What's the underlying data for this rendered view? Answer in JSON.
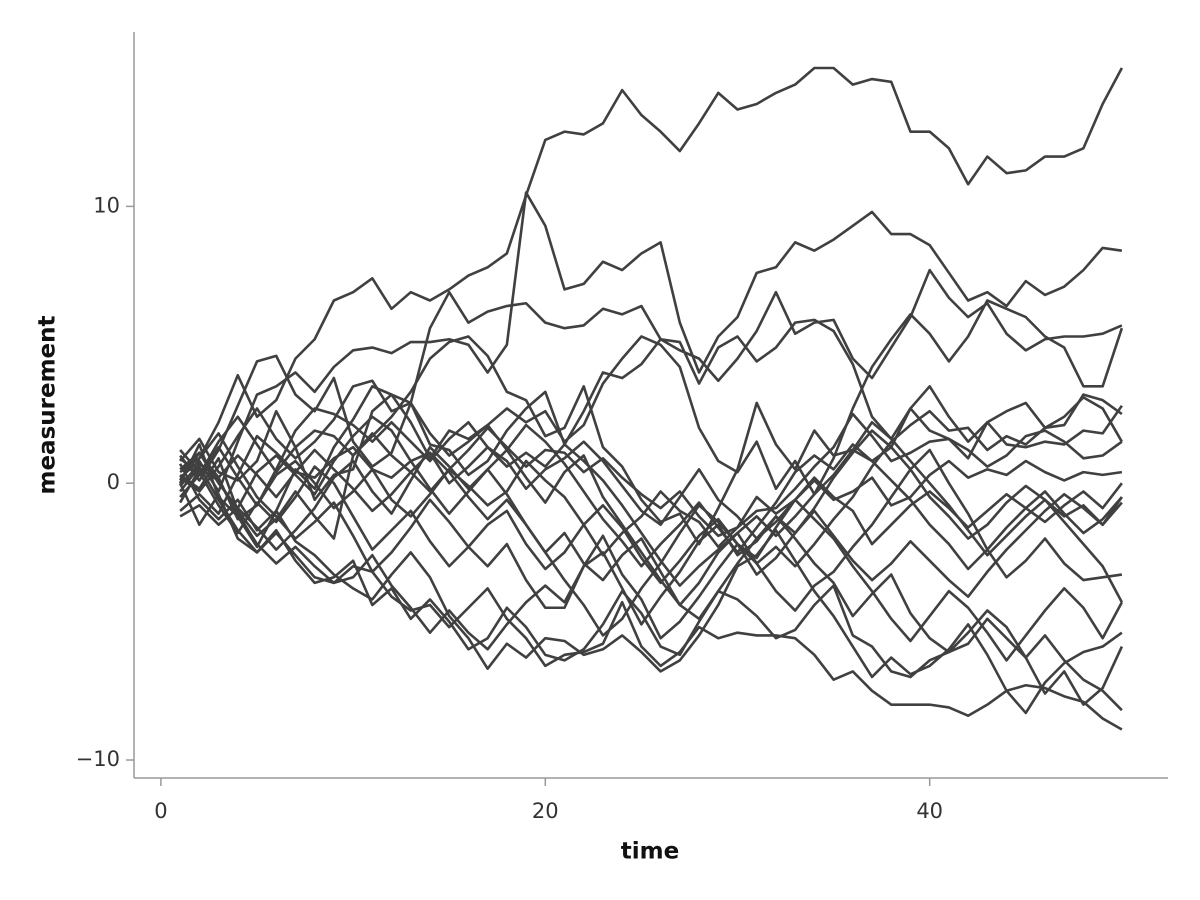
{
  "chart_data": {
    "type": "line",
    "xlabel": "time",
    "ylabel": "measurement",
    "x": [
      1,
      2,
      3,
      4,
      5,
      6,
      7,
      8,
      9,
      10,
      11,
      12,
      13,
      14,
      15,
      16,
      17,
      18,
      19,
      20,
      21,
      22,
      23,
      24,
      25,
      26,
      27,
      28,
      29,
      30,
      31,
      32,
      33,
      34,
      35,
      36,
      37,
      38,
      39,
      40,
      41,
      42,
      43,
      44,
      45,
      46,
      47,
      48,
      49,
      50
    ],
    "xlim": [
      -1.4,
      52.4
    ],
    "ylim": [
      -10.65,
      16.3
    ],
    "xticks": [
      0,
      20,
      40
    ],
    "yticks": [
      {
        "value": -10,
        "label": "−10"
      },
      0,
      10
    ],
    "grid": false,
    "series": [
      {
        "color": "#404040",
        "values": [
          0.5,
          0.9,
          2.2,
          3.9,
          2.4,
          3.0,
          4.5,
          5.2,
          6.6,
          6.9,
          7.4,
          6.3,
          6.9,
          6.6,
          7.0,
          7.5,
          7.8,
          8.3,
          10.4,
          12.4,
          12.7,
          12.6,
          13.0,
          14.2,
          13.3,
          12.7,
          12.0,
          13.0,
          14.1,
          13.5,
          13.7,
          14.1,
          14.4,
          15.0,
          15.0,
          14.4,
          14.6,
          14.5,
          12.7,
          12.7,
          12.1,
          10.8,
          11.8,
          11.2,
          11.3,
          11.8,
          11.8,
          12.1,
          13.7,
          15.0
        ]
      },
      {
        "color": "#404040",
        "values": [
          0.2,
          0.8,
          -0.3,
          1.5,
          3.2,
          3.5,
          4.0,
          3.3,
          4.2,
          4.8,
          4.9,
          4.7,
          5.1,
          5.1,
          5.2,
          5.0,
          4.0,
          5.0,
          10.5,
          9.3,
          7.0,
          7.2,
          8.0,
          7.7,
          8.3,
          8.7,
          5.8,
          4.0,
          5.3,
          6.0,
          7.6,
          7.8,
          8.7,
          8.4,
          8.8,
          9.3,
          9.8,
          9.0,
          9.0,
          8.6,
          7.6,
          6.6,
          6.9,
          6.4,
          7.3,
          6.8,
          7.1,
          7.7,
          8.5,
          8.4
        ]
      },
      {
        "color": "#404040",
        "values": [
          1.0,
          0.1,
          1.2,
          2.8,
          4.4,
          4.6,
          3.2,
          2.6,
          3.8,
          1.5,
          0.6,
          1.1,
          2.9,
          5.6,
          6.9,
          5.8,
          6.2,
          6.4,
          6.5,
          5.8,
          5.6,
          5.7,
          6.3,
          6.1,
          6.4,
          5.2,
          4.8,
          4.5,
          3.7,
          4.5,
          5.5,
          6.9,
          5.4,
          5.8,
          5.9,
          4.5,
          3.8,
          4.9,
          6.0,
          7.7,
          6.7,
          6.0,
          6.5,
          5.4,
          4.8,
          5.2,
          5.3,
          5.3,
          5.4,
          5.7
        ]
      },
      {
        "color": "#404040",
        "values": [
          0.0,
          1.4,
          -0.5,
          -1.2,
          -2.3,
          -1.0,
          0.5,
          -0.2,
          1.3,
          2.3,
          3.5,
          3.2,
          2.2,
          0.9,
          1.9,
          1.6,
          2.1,
          2.7,
          2.2,
          2.6,
          1.5,
          2.1,
          3.6,
          4.5,
          5.3,
          5.0,
          4.2,
          2.0,
          0.8,
          0.4,
          1.5,
          -0.2,
          0.8,
          -0.4,
          0.9,
          2.7,
          4.2,
          5.2,
          6.1,
          5.4,
          4.4,
          5.3,
          6.6,
          6.3,
          6.0,
          5.3,
          4.9,
          3.5,
          3.5,
          5.6
        ]
      },
      {
        "color": "#404040",
        "values": [
          -0.5,
          0.3,
          1.5,
          2.4,
          1.4,
          0.4,
          1.3,
          -0.6,
          0.3,
          0.5,
          2.6,
          3.2,
          2.9,
          1.4,
          1.2,
          0.3,
          0.8,
          1.9,
          2.7,
          3.3,
          1.4,
          2.6,
          4.0,
          3.8,
          4.3,
          5.2,
          5.1,
          3.6,
          4.9,
          5.3,
          4.4,
          4.9,
          5.8,
          5.9,
          5.5,
          4.3,
          2.4,
          1.6,
          2.7,
          1.9,
          1.6,
          0.9,
          2.2,
          1.4,
          1.3,
          1.5,
          1.4,
          1.9,
          1.8,
          2.8
        ]
      },
      {
        "color": "#404040",
        "values": [
          0.3,
          -0.2,
          0.9,
          -1.0,
          -1.9,
          -1.3,
          -0.3,
          -1.2,
          -2.0,
          1.0,
          1.7,
          2.4,
          3.3,
          4.5,
          5.1,
          5.3,
          4.6,
          3.3,
          3.0,
          1.7,
          2.0,
          3.5,
          1.3,
          0.6,
          -0.6,
          -1.4,
          -1.1,
          -2.2,
          -0.9,
          0.5,
          2.9,
          1.4,
          0.5,
          1.9,
          1.0,
          1.2,
          0.8,
          1.3,
          2.7,
          3.5,
          2.4,
          1.5,
          2.2,
          2.6,
          2.9,
          2.0,
          2.1,
          3.2,
          3.0,
          2.5
        ]
      },
      {
        "color": "#404040",
        "values": [
          0.8,
          1.6,
          0.4,
          0.1,
          0.8,
          2.6,
          1.3,
          1.9,
          1.7,
          1.0,
          1.8,
          1.0,
          0.4,
          -0.3,
          0.5,
          1.2,
          2.0,
          1.3,
          0.6,
          1.2,
          1.1,
          0.4,
          0.9,
          0.2,
          -0.4,
          -0.9,
          -0.3,
          -1.2,
          -1.9,
          -1.6,
          -1.0,
          -0.9,
          -0.2,
          0.6,
          1.3,
          2.5,
          1.7,
          0.8,
          1.1,
          1.5,
          1.6,
          1.2,
          0.6,
          1.0,
          1.7,
          1.9,
          1.5,
          0.9,
          1.0,
          1.5
        ]
      },
      {
        "color": "#404040",
        "values": [
          -1.0,
          -0.4,
          -1.1,
          0.3,
          1.7,
          1.1,
          0.4,
          0.2,
          0.9,
          1.3,
          0.5,
          0.2,
          0.8,
          1.1,
          0.0,
          0.6,
          1.3,
          0.8,
          -0.2,
          0.5,
          0.9,
          1.5,
          0.8,
          -0.1,
          -1.0,
          -1.5,
          -0.5,
          0.5,
          -0.6,
          -1.2,
          -2.0,
          -1.4,
          -0.6,
          0.1,
          -0.6,
          -0.3,
          0.2,
          -0.8,
          -0.5,
          0.3,
          0.8,
          0.2,
          0.5,
          0.3,
          0.8,
          0.4,
          0.1,
          0.4,
          0.3,
          0.4
        ]
      },
      {
        "color": "#404040",
        "values": [
          0.5,
          1.1,
          0.2,
          -1.3,
          -0.8,
          0.3,
          0.8,
          0.0,
          -0.9,
          -0.3,
          0.5,
          -0.6,
          -1.2,
          -0.4,
          0.5,
          -0.1,
          -0.8,
          -0.3,
          0.8,
          0.1,
          -0.5,
          -1.5,
          -2.6,
          -1.8,
          -1.2,
          -0.3,
          -1.0,
          -1.4,
          -2.3,
          -1.6,
          -0.5,
          -1.1,
          -0.6,
          0.2,
          -0.5,
          -1.0,
          -2.2,
          -1.5,
          -0.8,
          -0.3,
          -0.9,
          -1.6,
          -1.0,
          -0.4,
          -0.9,
          -1.4,
          -0.8,
          -0.3,
          -0.9,
          0.0
        ]
      },
      {
        "color": "#404040",
        "values": [
          1.2,
          0.4,
          -0.8,
          -1.8,
          -0.7,
          -1.4,
          -0.5,
          0.6,
          0.0,
          -1.2,
          -2.4,
          -1.7,
          -1.0,
          -2.1,
          -3.0,
          -2.3,
          -1.5,
          -1.0,
          -2.2,
          -3.1,
          -2.5,
          -1.5,
          -0.8,
          -1.6,
          -2.7,
          -3.6,
          -2.8,
          -1.9,
          -1.3,
          -2.2,
          -3.3,
          -2.7,
          -1.8,
          -1.0,
          -1.9,
          -2.8,
          -3.5,
          -2.9,
          -2.1,
          -2.8,
          -3.5,
          -4.1,
          -3.2,
          -2.4,
          -1.7,
          -1.0,
          -0.4,
          -0.9,
          -1.5,
          -0.5
        ]
      },
      {
        "color": "#404040",
        "values": [
          -0.3,
          0.6,
          -0.6,
          -1.7,
          -2.5,
          -1.8,
          -2.6,
          -3.4,
          -3.6,
          -3.0,
          -3.2,
          -4.1,
          -4.6,
          -4.4,
          -5.2,
          -4.5,
          -3.8,
          -4.9,
          -5.6,
          -6.6,
          -6.2,
          -6.1,
          -5.8,
          -4.3,
          -5.9,
          -6.6,
          -6.1,
          -5.2,
          -5.6,
          -5.4,
          -5.5,
          -5.5,
          -5.6,
          -6.2,
          -7.1,
          -6.8,
          -7.5,
          -8.0,
          -8.0,
          -8.0,
          -8.1,
          -8.4,
          -8.0,
          -7.5,
          -7.3,
          -7.4,
          -7.7,
          -7.9,
          -8.5,
          -8.9
        ]
      },
      {
        "color": "#404040",
        "values": [
          0.0,
          -1.5,
          -0.4,
          -2.0,
          -2.5,
          -1.7,
          -2.8,
          -3.6,
          -3.4,
          -2.8,
          -4.4,
          -3.8,
          -4.9,
          -4.2,
          -5.0,
          -6.0,
          -5.6,
          -4.5,
          -5.2,
          -6.2,
          -6.4,
          -6.0,
          -5.1,
          -3.9,
          -4.7,
          -5.9,
          -6.2,
          -5.0,
          -3.9,
          -4.2,
          -4.8,
          -5.6,
          -5.3,
          -4.4,
          -3.7,
          -5.5,
          -5.9,
          -6.8,
          -7.0,
          -6.4,
          -6.1,
          -5.8,
          -4.9,
          -5.6,
          -6.3,
          -7.6,
          -6.8,
          -8.0,
          -7.4,
          -5.9
        ]
      },
      {
        "color": "#404040",
        "values": [
          0.7,
          -0.6,
          -1.3,
          -0.6,
          -1.7,
          -1.0,
          -2.1,
          -2.6,
          -3.3,
          -3.8,
          -4.2,
          -3.3,
          -2.5,
          -3.4,
          -4.8,
          -5.6,
          -6.7,
          -5.8,
          -6.3,
          -5.6,
          -5.7,
          -6.2,
          -6.0,
          -5.5,
          -6.1,
          -6.8,
          -6.4,
          -5.5,
          -4.4,
          -3.0,
          -2.6,
          -1.7,
          -2.8,
          -3.9,
          -4.8,
          -5.9,
          -7.0,
          -6.3,
          -6.9,
          -6.6,
          -6.0,
          -5.1,
          -6.2,
          -7.5,
          -8.3,
          -7.2,
          -6.5,
          -6.1,
          -5.9,
          -5.4
        ]
      },
      {
        "color": "#404040",
        "values": [
          -1.2,
          -0.8,
          -1.5,
          -0.9,
          0.4,
          1.0,
          0.3,
          -0.4,
          0.8,
          1.7,
          2.4,
          1.9,
          0.8,
          -0.2,
          -1.1,
          -0.3,
          0.5,
          -0.4,
          -1.5,
          -2.5,
          -1.8,
          -2.9,
          -3.5,
          -2.6,
          -2.0,
          -3.2,
          -4.4,
          -3.6,
          -2.5,
          -1.8,
          -2.9,
          -3.9,
          -4.6,
          -3.7,
          -3.2,
          -2.3,
          -1.5,
          -0.5,
          0.5,
          1.2,
          0.0,
          -1.1,
          -2.4,
          -3.4,
          -2.8,
          -2.0,
          -2.9,
          -3.5,
          -3.4,
          -3.3
        ]
      },
      {
        "color": "#404040",
        "values": [
          0.4,
          0.9,
          1.8,
          0.6,
          -0.5,
          -1.2,
          -2.0,
          -1.4,
          -0.7,
          -1.9,
          -3.2,
          -2.5,
          -1.6,
          -0.6,
          -1.4,
          -2.3,
          -3.0,
          -2.2,
          -3.5,
          -4.5,
          -4.5,
          -3.0,
          -2.5,
          -3.8,
          -5.1,
          -4.1,
          -3.2,
          -2.1,
          -1.5,
          -2.6,
          -2.1,
          -1.2,
          -2.0,
          -2.9,
          -3.6,
          -4.8,
          -4.0,
          -3.3,
          -4.7,
          -5.6,
          -6.1,
          -5.4,
          -4.6,
          -5.2,
          -6.3,
          -5.5,
          -6.4,
          -7.1,
          -7.5,
          -8.2
        ]
      },
      {
        "color": "#404040",
        "values": [
          0.9,
          0.3,
          1.3,
          0.2,
          -0.8,
          0.5,
          1.9,
          2.7,
          2.5,
          2.1,
          1.5,
          2.2,
          1.5,
          0.8,
          1.6,
          2.2,
          1.3,
          0.6,
          1.1,
          0.6,
          1.4,
          0.8,
          0.1,
          -0.8,
          -1.8,
          -2.8,
          -3.7,
          -3.0,
          -2.4,
          -1.8,
          -1.2,
          -1.9,
          -1.2,
          -0.4,
          0.3,
          1.2,
          2.2,
          1.6,
          0.8,
          0.0,
          -0.8,
          -1.7,
          -2.6,
          -1.9,
          -1.2,
          -0.6,
          -1.4,
          -2.2,
          -3.0,
          -4.3
        ]
      },
      {
        "color": "#404040",
        "values": [
          0.2,
          -0.3,
          0.6,
          1.7,
          2.7,
          1.6,
          0.9,
          1.5,
          2.3,
          3.5,
          3.7,
          2.6,
          2.9,
          1.8,
          1.0,
          1.5,
          2.1,
          1.2,
          0.2,
          -0.7,
          0.4,
          1.0,
          -0.5,
          -1.5,
          -2.5,
          -3.5,
          -4.4,
          -4.9,
          -3.9,
          -2.9,
          -2.0,
          -1.2,
          -1.8,
          -0.9,
          0.2,
          1.1,
          1.9,
          1.3,
          0.5,
          -0.5,
          -1.2,
          -2.0,
          -1.5,
          -0.7,
          -0.1,
          -0.6,
          -1.2,
          -0.8,
          -1.5,
          -0.7
        ]
      },
      {
        "color": "#404040",
        "values": [
          -0.7,
          0.5,
          0.1,
          -1.1,
          -2.2,
          -2.9,
          -2.3,
          -3.0,
          -3.6,
          -3.4,
          -2.6,
          -3.7,
          -4.5,
          -5.4,
          -4.6,
          -5.4,
          -6.0,
          -5.1,
          -4.3,
          -3.7,
          -4.3,
          -3.0,
          -1.9,
          -3.3,
          -4.2,
          -5.6,
          -5.0,
          -4.1,
          -3.1,
          -2.2,
          -2.7,
          -1.6,
          -0.6,
          -1.3,
          -2.0,
          -3.0,
          -3.9,
          -4.9,
          -5.7,
          -4.8,
          -3.9,
          -4.5,
          -5.4,
          -6.4,
          -5.5,
          -4.6,
          -3.8,
          -4.5,
          -5.6,
          -4.3
        ]
      },
      {
        "color": "#404040",
        "values": [
          0.1,
          1.1,
          0.0,
          -0.9,
          -1.6,
          -2.4,
          -1.7,
          -0.9,
          0.2,
          0.8,
          -0.3,
          -1.1,
          0.1,
          1.3,
          0.6,
          -0.2,
          0.5,
          1.2,
          2.1,
          1.5,
          0.7,
          -0.3,
          -1.3,
          -2.1,
          -3.0,
          -2.2,
          -1.5,
          -0.7,
          -1.6,
          -2.5,
          -1.6,
          -0.7,
          0.4,
          1.0,
          0.5,
          1.4,
          0.8,
          0.1,
          -0.6,
          -1.5,
          -2.2,
          -3.1,
          -2.4,
          -1.6,
          -0.9,
          -0.3,
          -1.1,
          -1.8,
          -1.3,
          -0.5
        ]
      },
      {
        "color": "#404040",
        "values": [
          -0.1,
          0.7,
          0.2,
          1.0,
          0.3,
          -0.5,
          0.4,
          1.2,
          0.5,
          -0.2,
          -1.0,
          -0.4,
          0.4,
          1.1,
          0.4,
          -0.5,
          -1.3,
          -0.6,
          -1.5,
          -2.5,
          -3.5,
          -4.4,
          -5.5,
          -4.9,
          -3.8,
          -2.9,
          -1.8,
          -0.8,
          -1.4,
          -2.2,
          -2.9,
          -2.3,
          -3.0,
          -2.2,
          -1.3,
          -0.5,
          0.6,
          1.5,
          2.1,
          2.6,
          1.9,
          2.0,
          1.2,
          1.7,
          1.4,
          2.0,
          2.4,
          3.1,
          2.7,
          1.5
        ]
      }
    ]
  }
}
